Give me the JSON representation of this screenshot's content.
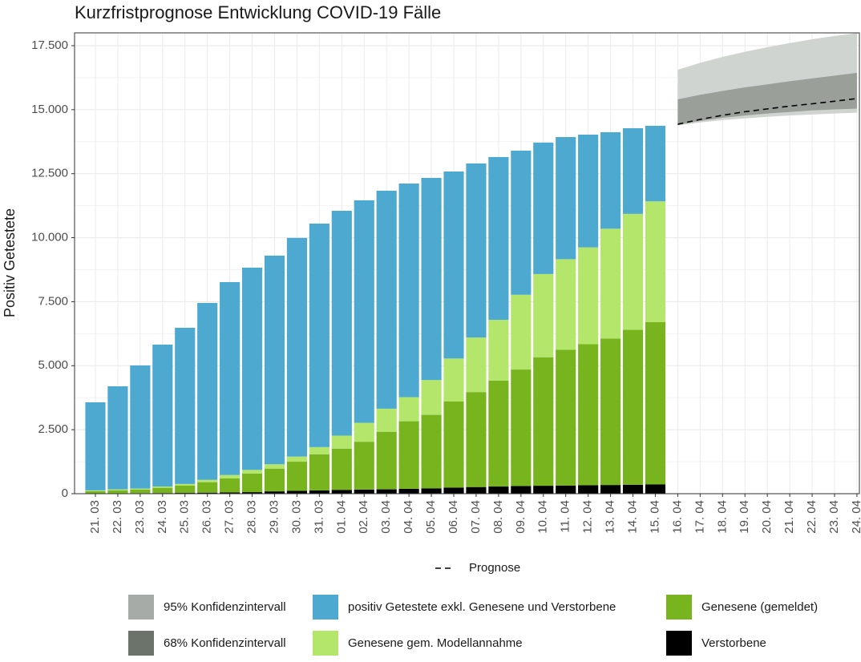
{
  "chart_data": {
    "type": "stacked_bar_forecast",
    "title": "Kurzfristprognose Entwicklung COVID-19 Fälle",
    "y_label": "Positiv Getestete",
    "categories": [
      "21. 03",
      "22. 03",
      "23. 03",
      "24. 03",
      "25. 03",
      "26. 03",
      "27. 03",
      "28. 03",
      "29. 03",
      "30. 03",
      "31. 03",
      "01. 04",
      "02. 04",
      "03. 04",
      "04. 04",
      "05. 04",
      "06. 04",
      "07. 04",
      "08. 04",
      "09. 04",
      "10. 04",
      "11. 04",
      "12. 04",
      "13. 04",
      "14. 04",
      "15. 04",
      "16. 04",
      "17. 04",
      "18. 04",
      "19. 04",
      "20. 04",
      "21. 04",
      "22. 04",
      "23. 04",
      "24. 04"
    ],
    "ylim": [
      0,
      18000
    ],
    "yticks": [
      0,
      {
        "value": 2500,
        "label": "2.500"
      },
      {
        "value": 5000,
        "label": "5.000"
      },
      {
        "value": 7500,
        "label": "7.500"
      },
      {
        "value": 10000,
        "label": "10.000"
      },
      {
        "value": 12500,
        "label": "12.500"
      },
      {
        "value": 15000,
        "label": "15.000"
      },
      {
        "value": 17500,
        "label": "17.500"
      }
    ],
    "grid": true,
    "series": [
      {
        "name": "Verstorbene",
        "color": "#000000",
        "values": [
          10,
          15,
          20,
          25,
          30,
          40,
          50,
          60,
          90,
          110,
          130,
          150,
          160,
          170,
          190,
          210,
          240,
          260,
          280,
          300,
          310,
          320,
          330,
          340,
          350,
          360,
          null,
          null,
          null,
          null,
          null,
          null,
          null,
          null,
          null
        ]
      },
      {
        "name": "Genesene (gemeldet)",
        "color": "#78b41e",
        "values": [
          90,
          115,
          140,
          205,
          290,
          410,
          550,
          730,
          890,
          1140,
          1410,
          1610,
          1870,
          2250,
          2640,
          2870,
          3360,
          3710,
          4140,
          4550,
          5020,
          5300,
          5510,
          5720,
          6050,
          6340,
          null,
          null,
          null,
          null,
          null,
          null,
          null,
          null,
          null
        ]
      },
      {
        "name": "Genesene gem. Modellannahme",
        "color": "#b3e66a",
        "values": [
          30,
          40,
          40,
          50,
          60,
          90,
          130,
          140,
          170,
          200,
          280,
          510,
          740,
          900,
          940,
          1360,
          1680,
          2130,
          2370,
          2920,
          3250,
          3540,
          3780,
          4290,
          4530,
          4720,
          null,
          null,
          null,
          null,
          null,
          null,
          null,
          null,
          null
        ]
      },
      {
        "name": "positiv Getestete exkl. Genesene und Verstorbene",
        "color": "#4ea9d0",
        "values": [
          3440,
          4025,
          4810,
          5545,
          6100,
          6910,
          7535,
          7900,
          8150,
          8540,
          8730,
          8780,
          8690,
          8515,
          8345,
          7895,
          7305,
          6800,
          6360,
          5630,
          5135,
          4770,
          4405,
          3770,
          3345,
          2950,
          null,
          null,
          null,
          null,
          null,
          null,
          null,
          null,
          null
        ]
      }
    ],
    "bands": [
      {
        "name": "95% Konfidenzintervall",
        "color": "#d0d4d0",
        "legend_color": "#a7aba7",
        "lower": [
          null,
          null,
          null,
          null,
          null,
          null,
          null,
          null,
          null,
          null,
          null,
          null,
          null,
          null,
          null,
          null,
          null,
          null,
          null,
          null,
          null,
          null,
          null,
          null,
          null,
          null,
          14380,
          14500,
          14590,
          14660,
          14720,
          14770,
          14810,
          14850,
          14880
        ],
        "upper": [
          null,
          null,
          null,
          null,
          null,
          null,
          null,
          null,
          null,
          null,
          null,
          null,
          null,
          null,
          null,
          null,
          null,
          null,
          null,
          null,
          null,
          null,
          null,
          null,
          null,
          null,
          16560,
          16830,
          17060,
          17260,
          17440,
          17600,
          17750,
          17880,
          17990
        ]
      },
      {
        "name": "68% Konfidenzintervall",
        "color": "#9a9f9a",
        "legend_color": "#6b736b",
        "lower": [
          null,
          null,
          null,
          null,
          null,
          null,
          null,
          null,
          null,
          null,
          null,
          null,
          null,
          null,
          null,
          null,
          null,
          null,
          null,
          null,
          null,
          null,
          null,
          null,
          null,
          null,
          14410,
          14560,
          14680,
          14770,
          14850,
          14910,
          14970,
          15010,
          15040
        ],
        "upper": [
          null,
          null,
          null,
          null,
          null,
          null,
          null,
          null,
          null,
          null,
          null,
          null,
          null,
          null,
          null,
          null,
          null,
          null,
          null,
          null,
          null,
          null,
          null,
          null,
          null,
          null,
          15400,
          15580,
          15730,
          15870,
          15990,
          16110,
          16220,
          16330,
          16440
        ]
      }
    ],
    "forecast": {
      "name": "Prognose",
      "color": "#000000",
      "values": [
        null,
        null,
        null,
        null,
        null,
        null,
        null,
        null,
        null,
        null,
        null,
        null,
        null,
        null,
        null,
        null,
        null,
        null,
        null,
        null,
        null,
        null,
        null,
        null,
        null,
        null,
        14430,
        14620,
        14780,
        14920,
        15030,
        15140,
        15230,
        15330,
        15435
      ]
    }
  }
}
